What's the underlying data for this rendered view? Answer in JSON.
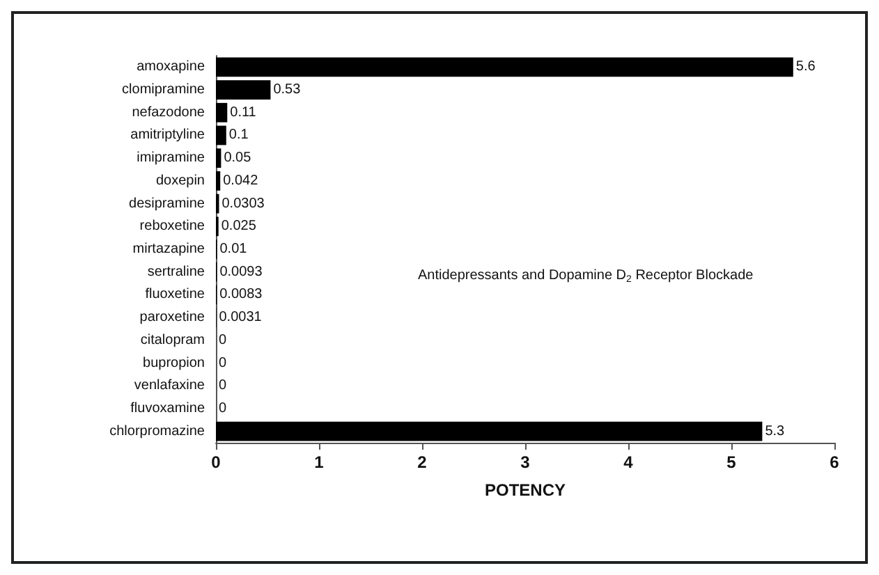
{
  "chart_data": {
    "type": "bar",
    "orientation": "horizontal",
    "xlabel": "POTENCY",
    "categories": [
      "amoxapine",
      "clomipramine",
      "nefazodone",
      "amitriptyline",
      "imipramine",
      "doxepin",
      "desipramine",
      "reboxetine",
      "mirtazapine",
      "sertraline",
      "fluoxetine",
      "paroxetine",
      "citalopram",
      "bupropion",
      "venlafaxine",
      "fluvoxamine",
      "chlorpromazine"
    ],
    "values": [
      5.6,
      0.53,
      0.11,
      0.1,
      0.05,
      0.042,
      0.0303,
      0.025,
      0.01,
      0.0093,
      0.0083,
      0.0031,
      0,
      0,
      0,
      0,
      5.3
    ],
    "color": "#000000",
    "xlim": [
      0,
      6
    ],
    "xticks": [
      0,
      1,
      2,
      3,
      4,
      5,
      6
    ],
    "data_labels": true,
    "grid": false,
    "annotations": [
      "Antidepressants and Dopamine D$_{2}$ Receptor Blockade"
    ]
  }
}
